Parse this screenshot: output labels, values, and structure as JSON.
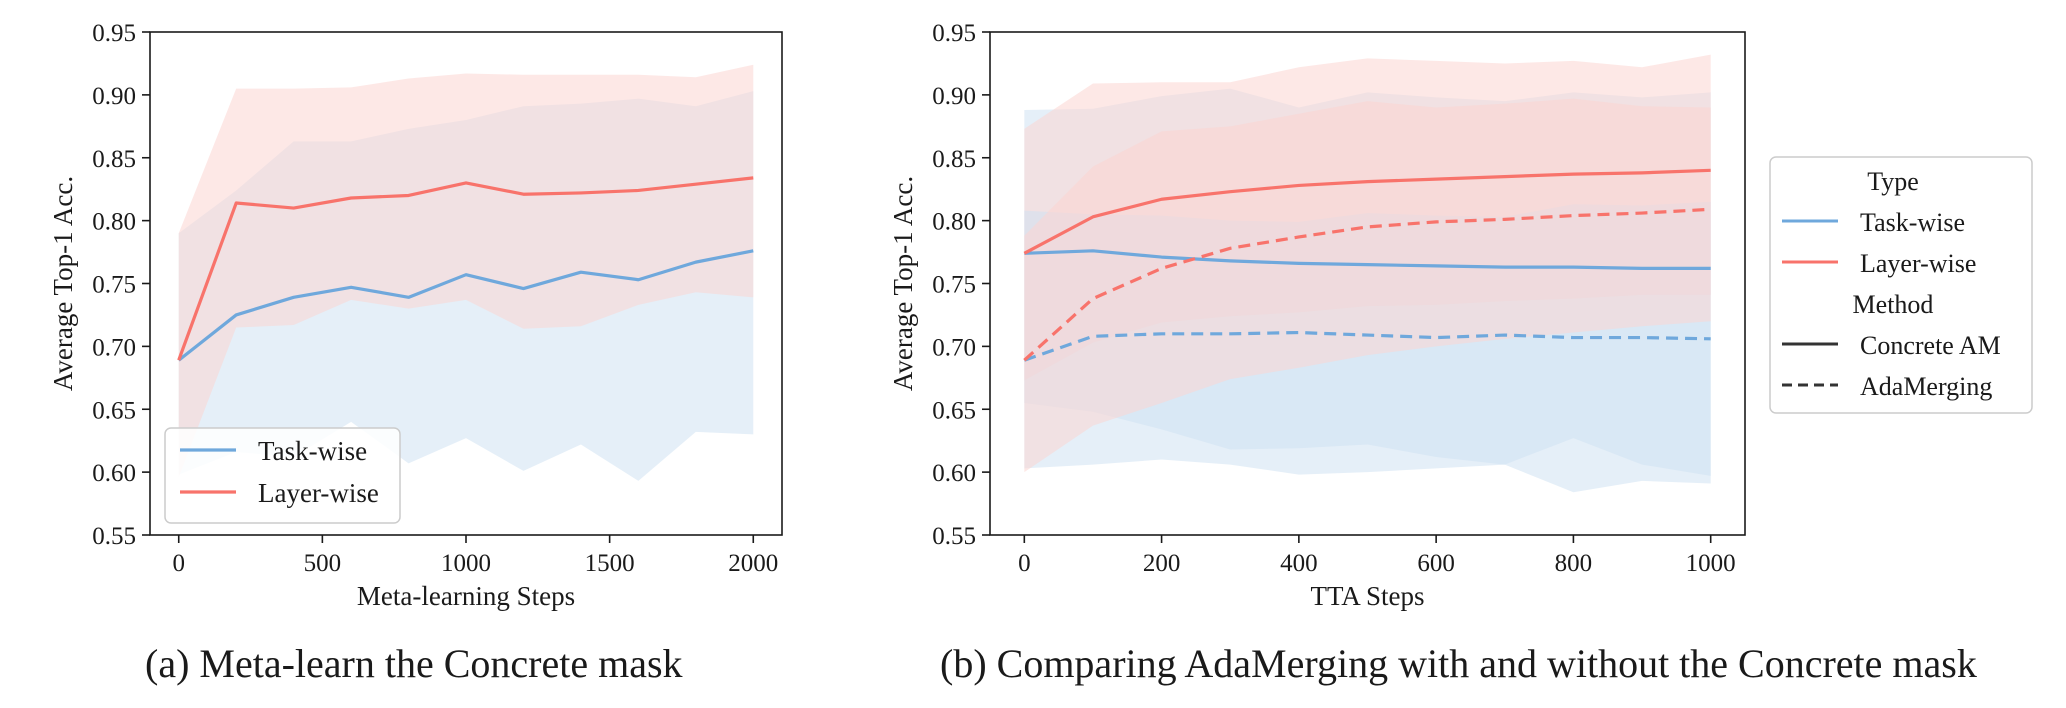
{
  "colors": {
    "task": "#6fa8dc",
    "layer": "#f8736b",
    "task_fill": "#cfe2f3",
    "layer_fill": "#fcd5d1",
    "axis": "#1a1a1a"
  },
  "captions": {
    "a": "(a) Meta-learn the Concrete mask",
    "b": "(b) Comparing AdaMerging with and without the Concrete mask"
  },
  "chart_data": [
    {
      "type": "line",
      "xlabel": "Meta-learning Steps",
      "ylabel": "Average Top-1 Acc.",
      "xlim": [
        -100,
        2100
      ],
      "ylim": [
        0.55,
        0.95
      ],
      "xticks": [
        0,
        500,
        1000,
        1500,
        2000
      ],
      "xtick_labels": [
        "0",
        "500",
        "1000",
        "1500",
        "2000"
      ],
      "yticks": [
        0.55,
        0.6,
        0.65,
        0.7,
        0.75,
        0.8,
        0.85,
        0.9,
        0.95
      ],
      "ytick_labels": [
        "0.55",
        "0.60",
        "0.65",
        "0.70",
        "0.75",
        "0.80",
        "0.85",
        "0.90",
        "0.95"
      ],
      "legend": {
        "placement": "lower-left",
        "entries": [
          "Task-wise",
          "Layer-wise"
        ]
      },
      "x": [
        0,
        200,
        400,
        600,
        800,
        1000,
        1200,
        1400,
        1600,
        1800,
        2000
      ],
      "series": [
        {
          "name": "Task-wise",
          "color": "#6fa8dc",
          "dash": "solid",
          "values": [
            0.689,
            0.725,
            0.739,
            0.747,
            0.739,
            0.757,
            0.746,
            0.759,
            0.753,
            0.767,
            0.776
          ],
          "lower": [
            0.598,
            0.616,
            0.612,
            0.64,
            0.607,
            0.627,
            0.601,
            0.622,
            0.593,
            0.632,
            0.63
          ],
          "upper": [
            0.79,
            0.824,
            0.863,
            0.863,
            0.873,
            0.88,
            0.891,
            0.893,
            0.897,
            0.891,
            0.903
          ]
        },
        {
          "name": "Layer-wise",
          "color": "#f8736b",
          "dash": "solid",
          "values": [
            0.689,
            0.814,
            0.81,
            0.818,
            0.82,
            0.83,
            0.821,
            0.822,
            0.824,
            0.829,
            0.834
          ],
          "lower": [
            0.596,
            0.715,
            0.717,
            0.737,
            0.73,
            0.737,
            0.714,
            0.716,
            0.733,
            0.743,
            0.739
          ],
          "upper": [
            0.79,
            0.905,
            0.905,
            0.906,
            0.913,
            0.917,
            0.916,
            0.916,
            0.916,
            0.914,
            0.924
          ]
        }
      ]
    },
    {
      "type": "line",
      "xlabel": "TTA Steps",
      "ylabel": "Average Top-1 Acc.",
      "xlim": [
        -50,
        1050
      ],
      "ylim": [
        0.55,
        0.95
      ],
      "xticks": [
        0,
        200,
        400,
        600,
        800,
        1000
      ],
      "xtick_labels": [
        "0",
        "200",
        "400",
        "600",
        "800",
        "1000"
      ],
      "yticks": [
        0.55,
        0.6,
        0.65,
        0.7,
        0.75,
        0.8,
        0.85,
        0.9,
        0.95
      ],
      "ytick_labels": [
        "0.55",
        "0.60",
        "0.65",
        "0.70",
        "0.75",
        "0.80",
        "0.85",
        "0.90",
        "0.95"
      ],
      "legend": {
        "placement": "outside-right",
        "items": [
          {
            "kind": "header",
            "label": "Type"
          },
          {
            "kind": "line",
            "label": "Task-wise",
            "color": "#6fa8dc",
            "dash": "solid"
          },
          {
            "kind": "line",
            "label": "Layer-wise",
            "color": "#f8736b",
            "dash": "solid"
          },
          {
            "kind": "header",
            "label": "Method"
          },
          {
            "kind": "line",
            "label": "Concrete AM",
            "color": "#333333",
            "dash": "solid"
          },
          {
            "kind": "line",
            "label": "AdaMerging",
            "color": "#333333",
            "dash": "dashed"
          }
        ]
      },
      "x": [
        0,
        100,
        200,
        300,
        400,
        500,
        600,
        700,
        800,
        900,
        1000
      ],
      "series": [
        {
          "type": "Task-wise",
          "method": "Concrete AM",
          "color": "#6fa8dc",
          "dash": "solid",
          "values": [
            0.774,
            0.776,
            0.771,
            0.768,
            0.766,
            0.765,
            0.764,
            0.763,
            0.763,
            0.762,
            0.762
          ],
          "lower": [
            0.603,
            0.606,
            0.61,
            0.606,
            0.598,
            0.6,
            0.603,
            0.606,
            0.584,
            0.593,
            0.591
          ],
          "upper": [
            0.888,
            0.889,
            0.899,
            0.905,
            0.89,
            0.902,
            0.898,
            0.895,
            0.902,
            0.898,
            0.902
          ]
        },
        {
          "type": "Layer-wise",
          "method": "Concrete AM",
          "color": "#f8736b",
          "dash": "solid",
          "values": [
            0.774,
            0.803,
            0.817,
            0.823,
            0.828,
            0.831,
            0.833,
            0.835,
            0.837,
            0.838,
            0.84
          ],
          "lower": [
            0.673,
            0.703,
            0.719,
            0.724,
            0.727,
            0.732,
            0.733,
            0.736,
            0.738,
            0.741,
            0.741
          ],
          "upper": [
            0.873,
            0.909,
            0.91,
            0.91,
            0.922,
            0.929,
            0.927,
            0.925,
            0.927,
            0.922,
            0.932
          ]
        },
        {
          "type": "Task-wise",
          "method": "AdaMerging",
          "color": "#6fa8dc",
          "dash": "dashed",
          "values": [
            0.689,
            0.708,
            0.71,
            0.71,
            0.711,
            0.709,
            0.707,
            0.709,
            0.707,
            0.707,
            0.706
          ],
          "lower": [
            0.655,
            0.648,
            0.634,
            0.618,
            0.619,
            0.622,
            0.612,
            0.606,
            0.627,
            0.606,
            0.597
          ],
          "upper": [
            0.808,
            0.805,
            0.804,
            0.8,
            0.799,
            0.806,
            0.804,
            0.803,
            0.813,
            0.812,
            0.815
          ]
        },
        {
          "type": "Layer-wise",
          "method": "AdaMerging",
          "color": "#f8736b",
          "dash": "dashed",
          "values": [
            0.689,
            0.738,
            0.762,
            0.778,
            0.787,
            0.795,
            0.799,
            0.801,
            0.804,
            0.806,
            0.809
          ],
          "lower": [
            0.6,
            0.637,
            0.655,
            0.674,
            0.683,
            0.693,
            0.7,
            0.706,
            0.711,
            0.716,
            0.72
          ],
          "upper": [
            0.788,
            0.843,
            0.871,
            0.875,
            0.885,
            0.895,
            0.89,
            0.893,
            0.897,
            0.891,
            0.89
          ]
        }
      ]
    }
  ]
}
